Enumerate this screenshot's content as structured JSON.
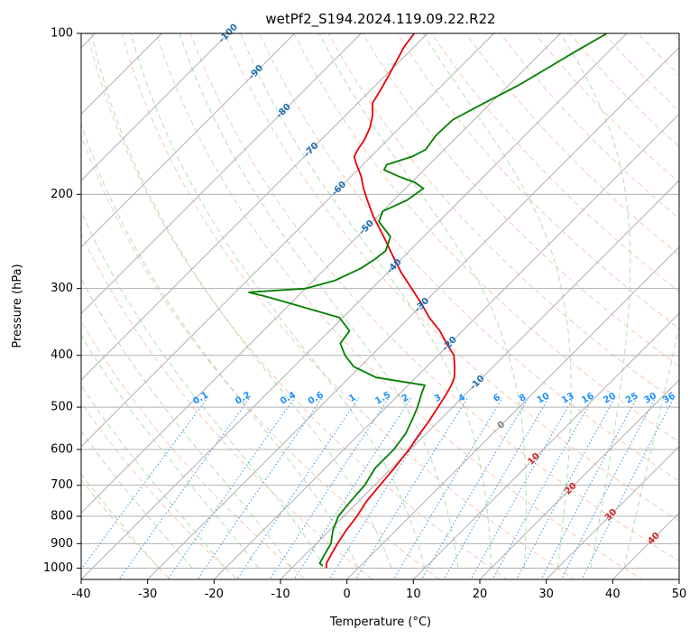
{
  "chart_data": {
    "type": "line",
    "title": "wetPf2_S194.2024.119.09.22.R22",
    "xlabel": "Temperature (°C)",
    "ylabel": "Pressure (hPa)",
    "xlim": [
      -40,
      50
    ],
    "ylim": [
      1050,
      100
    ],
    "y_scale": "log",
    "x_ticks": [
      -40,
      -30,
      -20,
      -10,
      0,
      10,
      20,
      30,
      40,
      50
    ],
    "y_ticks": [
      1000,
      900,
      800,
      700,
      600,
      500,
      400,
      300,
      200,
      100
    ],
    "grid": true,
    "skew_t": true,
    "series": [
      {
        "color": "#e8000b",
        "points": [
          [
            -4.8,
            1000
          ],
          [
            -5.5,
            980
          ],
          [
            -6.0,
            950
          ],
          [
            -6.8,
            900
          ],
          [
            -7.5,
            850
          ],
          [
            -8.0,
            800
          ],
          [
            -8.8,
            750
          ],
          [
            -9.2,
            700
          ],
          [
            -9.6,
            650
          ],
          [
            -10.2,
            600
          ],
          [
            -10.8,
            570
          ],
          [
            -11.5,
            530
          ],
          [
            -12.2,
            500
          ],
          [
            -13.0,
            470
          ],
          [
            -13.5,
            455
          ],
          [
            -14.2,
            440
          ],
          [
            -15.8,
            420
          ],
          [
            -17.6,
            400
          ],
          [
            -20.5,
            380
          ],
          [
            -23.4,
            360
          ],
          [
            -27.0,
            340
          ],
          [
            -30.3,
            320
          ],
          [
            -34.0,
            300
          ],
          [
            -38.0,
            280
          ],
          [
            -41.9,
            260
          ],
          [
            -46.0,
            240
          ],
          [
            -50.6,
            220
          ],
          [
            -54.0,
            205
          ],
          [
            -56.3,
            195
          ],
          [
            -58.5,
            185
          ],
          [
            -61.2,
            175
          ],
          [
            -62.5,
            170
          ],
          [
            -63.0,
            165
          ],
          [
            -63.5,
            158
          ],
          [
            -64.5,
            150
          ],
          [
            -66.0,
            142
          ],
          [
            -67.8,
            135
          ],
          [
            -68.5,
            128
          ],
          [
            -69.5,
            120
          ],
          [
            -70.6,
            112
          ],
          [
            -71.5,
            106
          ],
          [
            -72.0,
            100
          ]
        ]
      },
      {
        "color": "#008000",
        "points": [
          [
            -5.7,
            990
          ],
          [
            -6.5,
            980
          ],
          [
            -7.0,
            950
          ],
          [
            -7.8,
            900
          ],
          [
            -9.5,
            850
          ],
          [
            -10.8,
            800
          ],
          [
            -11.2,
            750
          ],
          [
            -11.5,
            700
          ],
          [
            -12.5,
            650
          ],
          [
            -12.5,
            600
          ],
          [
            -13.1,
            560
          ],
          [
            -14.5,
            520
          ],
          [
            -15.3,
            500
          ],
          [
            -16.8,
            470
          ],
          [
            -17.5,
            455
          ],
          [
            -26.0,
            440
          ],
          [
            -31.0,
            420
          ],
          [
            -34.0,
            400
          ],
          [
            -36.5,
            380
          ],
          [
            -37.0,
            360
          ],
          [
            -40.5,
            340
          ],
          [
            -50.0,
            320
          ],
          [
            -55.0,
            310
          ],
          [
            -58.0,
            305
          ],
          [
            -50.0,
            300
          ],
          [
            -46.8,
            290
          ],
          [
            -44.7,
            275
          ],
          [
            -44.0,
            265
          ],
          [
            -43.6,
            255
          ],
          [
            -45.0,
            240
          ],
          [
            -49.0,
            225
          ],
          [
            -50.0,
            215
          ],
          [
            -48.0,
            205
          ],
          [
            -47.3,
            195
          ],
          [
            -49.5,
            190
          ],
          [
            -52.9,
            185
          ],
          [
            -56.0,
            180
          ],
          [
            -56.4,
            176
          ],
          [
            -53.8,
            170
          ],
          [
            -52.8,
            165
          ],
          [
            -53.4,
            155
          ],
          [
            -53.2,
            145
          ],
          [
            -51.0,
            135
          ],
          [
            -48.5,
            125
          ],
          [
            -46.5,
            115
          ],
          [
            -45.0,
            108
          ],
          [
            -43.0,
            100
          ]
        ]
      }
    ],
    "isotherm_labels": {
      "color": "#1f6fb0",
      "items": [
        {
          "value": -100,
          "text": "-100"
        },
        {
          "value": -90,
          "text": "-90"
        },
        {
          "value": -80,
          "text": "-80"
        },
        {
          "value": -70,
          "text": "-70"
        },
        {
          "value": -60,
          "text": "-60"
        },
        {
          "value": -50,
          "text": "-50"
        },
        {
          "value": -40,
          "text": "-40"
        },
        {
          "value": -30,
          "text": "-30"
        },
        {
          "value": -20,
          "text": "-20"
        },
        {
          "value": -10,
          "text": "-10"
        }
      ]
    },
    "mixing_ratio_labels": {
      "color": "#1e90ff",
      "items": [
        "0.1",
        "0.2",
        "0.4",
        "0.6",
        "1",
        "1.5",
        "2",
        "3",
        "4",
        "6",
        "8",
        "10",
        "13",
        "16",
        "20",
        "25",
        "30",
        "36"
      ]
    },
    "low_isotherm_labels": {
      "items": [
        {
          "value": 0,
          "text": "0",
          "color": "#808080"
        },
        {
          "value": 10,
          "text": "10",
          "color": "#d62728"
        },
        {
          "value": 20,
          "text": "20",
          "color": "#d62728"
        },
        {
          "value": 30,
          "text": "30",
          "color": "#d62728"
        },
        {
          "value": 40,
          "text": "40",
          "color": "#d62728"
        }
      ]
    }
  }
}
